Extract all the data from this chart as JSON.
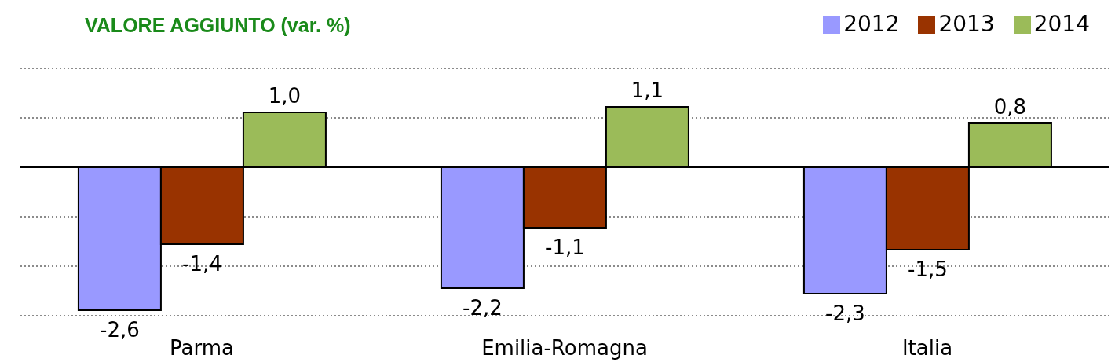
{
  "chart_data": {
    "type": "bar",
    "title": "VALORE AGGIUNTO (var. %)",
    "categories": [
      "Parma",
      "Emilia-Romagna",
      "Italia"
    ],
    "series": [
      {
        "name": "2012",
        "color": "#9999ff",
        "values": [
          -2.6,
          -2.2,
          -2.3
        ],
        "value_labels": [
          "-2,6",
          "-2,2",
          "-2,3"
        ]
      },
      {
        "name": "2013",
        "color": "#993300",
        "values": [
          -1.4,
          -1.1,
          -1.5
        ],
        "value_labels": [
          "-1,4",
          "-1,1",
          "-1,5"
        ]
      },
      {
        "name": "2014",
        "color": "#9bbb59",
        "values": [
          1.0,
          1.1,
          0.8
        ],
        "value_labels": [
          "1,0",
          "1,1",
          "0,8"
        ]
      }
    ],
    "grid": "y",
    "legend": "top right",
    "tick_labels": "x"
  }
}
